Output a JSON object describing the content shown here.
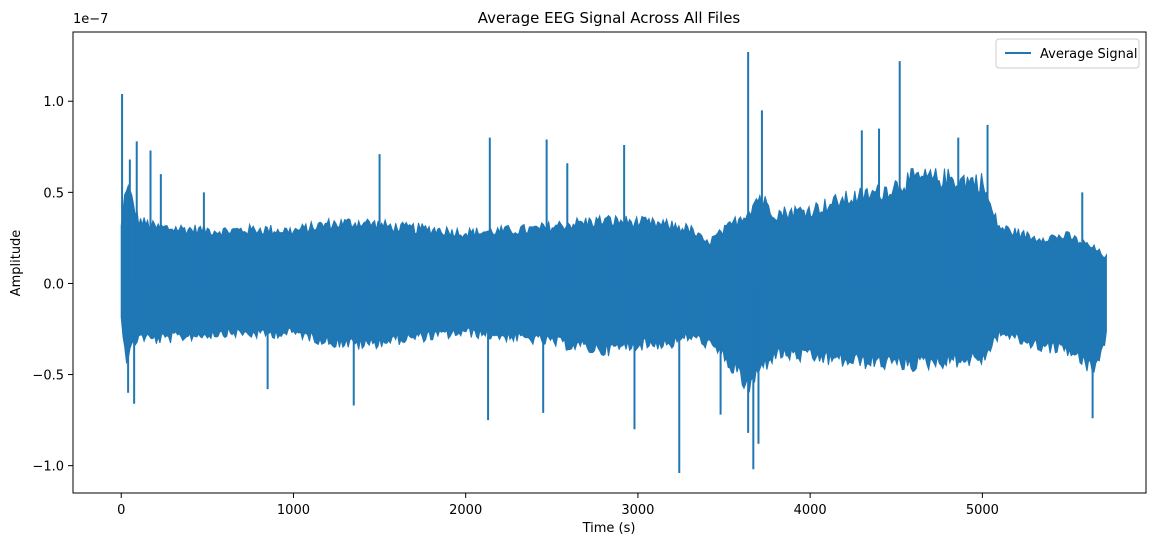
{
  "chart_data": {
    "type": "line",
    "title": "Average EEG Signal Across All Files",
    "xlabel": "Time (s)",
    "ylabel": "Amplitude",
    "y_offset_label": "1e−7",
    "xlim": [
      -280,
      5950
    ],
    "ylim": [
      -1.15,
      1.38
    ],
    "y_scale_exponent": -7,
    "xticks": [
      0,
      1000,
      2000,
      3000,
      4000,
      5000
    ],
    "xtick_labels": [
      "0",
      "1000",
      "2000",
      "3000",
      "4000",
      "5000"
    ],
    "yticks": [
      -1.0,
      -0.5,
      0.0,
      0.5,
      1.0
    ],
    "ytick_labels": [
      "−1.0",
      "−0.5",
      "0.0",
      "0.5",
      "1.0"
    ],
    "grid": false,
    "legend_position": "top-right",
    "series": [
      {
        "name": "Average Signal",
        "color": "#1f77b4",
        "envelope_x": [
          0,
          30,
          100,
          200,
          400,
          600,
          800,
          1000,
          1200,
          1400,
          1600,
          1800,
          2000,
          2200,
          2400,
          2600,
          2800,
          3000,
          3200,
          3300,
          3400,
          3500,
          3650,
          3700,
          3800,
          4000,
          4200,
          4400,
          4600,
          4800,
          5000,
          5060,
          5100,
          5300,
          5500,
          5650,
          5720
        ],
        "envelope_upper": [
          0.32,
          0.57,
          0.36,
          0.32,
          0.31,
          0.3,
          0.31,
          0.3,
          0.34,
          0.35,
          0.32,
          0.31,
          0.29,
          0.3,
          0.31,
          0.34,
          0.36,
          0.35,
          0.33,
          0.31,
          0.23,
          0.3,
          0.42,
          0.5,
          0.4,
          0.42,
          0.48,
          0.52,
          0.6,
          0.6,
          0.58,
          0.4,
          0.32,
          0.26,
          0.27,
          0.2,
          0.15
        ],
        "envelope_lower": [
          -0.2,
          -0.42,
          -0.3,
          -0.32,
          -0.3,
          -0.28,
          -0.29,
          -0.28,
          -0.33,
          -0.35,
          -0.32,
          -0.3,
          -0.28,
          -0.3,
          -0.32,
          -0.35,
          -0.38,
          -0.35,
          -0.34,
          -0.3,
          -0.34,
          -0.42,
          -0.6,
          -0.5,
          -0.4,
          -0.42,
          -0.44,
          -0.45,
          -0.46,
          -0.44,
          -0.43,
          -0.35,
          -0.28,
          -0.35,
          -0.38,
          -0.5,
          -0.3
        ],
        "peaks": [
          {
            "x": 5,
            "y": 1.04
          },
          {
            "x": 50,
            "y": 0.68
          },
          {
            "x": 90,
            "y": 0.78
          },
          {
            "x": 170,
            "y": 0.73
          },
          {
            "x": 230,
            "y": 0.6
          },
          {
            "x": 480,
            "y": 0.5
          },
          {
            "x": 1500,
            "y": 0.71
          },
          {
            "x": 2140,
            "y": 0.8
          },
          {
            "x": 2470,
            "y": 0.79
          },
          {
            "x": 2590,
            "y": 0.66
          },
          {
            "x": 2920,
            "y": 0.76
          },
          {
            "x": 3640,
            "y": 1.27
          },
          {
            "x": 3720,
            "y": 0.95
          },
          {
            "x": 4300,
            "y": 0.84
          },
          {
            "x": 4400,
            "y": 0.85
          },
          {
            "x": 4520,
            "y": 1.22
          },
          {
            "x": 4860,
            "y": 0.8
          },
          {
            "x": 5030,
            "y": 0.87
          },
          {
            "x": 5580,
            "y": 0.5
          }
        ],
        "troughs": [
          {
            "x": 40,
            "y": -0.6
          },
          {
            "x": 75,
            "y": -0.66
          },
          {
            "x": 850,
            "y": -0.58
          },
          {
            "x": 1350,
            "y": -0.67
          },
          {
            "x": 2130,
            "y": -0.75
          },
          {
            "x": 2450,
            "y": -0.71
          },
          {
            "x": 2980,
            "y": -0.8
          },
          {
            "x": 3240,
            "y": -1.04
          },
          {
            "x": 3480,
            "y": -0.72
          },
          {
            "x": 3640,
            "y": -0.82
          },
          {
            "x": 3670,
            "y": -1.02
          },
          {
            "x": 3700,
            "y": -0.88
          },
          {
            "x": 5640,
            "y": -0.74
          }
        ]
      }
    ]
  }
}
